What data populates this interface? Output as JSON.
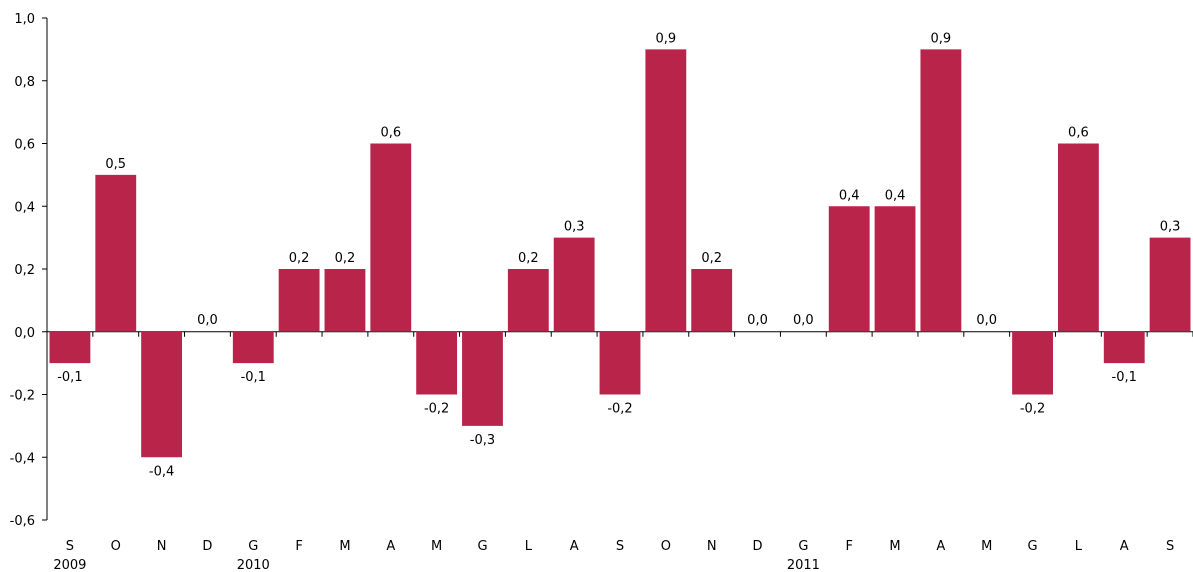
{
  "chart_data": {
    "type": "bar",
    "categories": [
      "S",
      "O",
      "N",
      "D",
      "G",
      "F",
      "M",
      "A",
      "M",
      "G",
      "L",
      "A",
      "S",
      "O",
      "N",
      "D",
      "G",
      "F",
      "M",
      "A",
      "M",
      "G",
      "L",
      "A",
      "S"
    ],
    "year_labels": [
      {
        "index": 0,
        "text": "2009"
      },
      {
        "index": 4,
        "text": "2010"
      },
      {
        "index": 16,
        "text": "2011"
      }
    ],
    "values": [
      -0.1,
      0.5,
      -0.4,
      0.0,
      -0.1,
      0.2,
      0.2,
      0.6,
      -0.2,
      -0.3,
      0.2,
      0.3,
      -0.2,
      0.9,
      0.2,
      0.0,
      0.0,
      0.4,
      0.4,
      0.9,
      0.0,
      -0.2,
      0.6,
      -0.1,
      0.3
    ],
    "data_labels": [
      "-0,1",
      "0,5",
      "-0,4",
      "0,0",
      "-0,1",
      "0,2",
      "0,2",
      "0,6",
      "-0,2",
      "-0,3",
      "0,2",
      "0,3",
      "-0,2",
      "0,9",
      "0,2",
      "0,0",
      "0,0",
      "0,4",
      "0,4",
      "0,9",
      "0,0",
      "-0,2",
      "0,6",
      "-0,1",
      "0,3"
    ],
    "ylim": [
      -0.6,
      1.0
    ],
    "yticks": [
      1.0,
      0.8,
      0.6,
      0.4,
      0.2,
      0.0,
      -0.2,
      -0.4,
      -0.6
    ],
    "ytick_labels": [
      "1,0",
      "0,8",
      "0,6",
      "0,4",
      "0,2",
      "0,0",
      "-0,2",
      "-0,4",
      "-0,6"
    ],
    "bar_color": "#B8244A",
    "grid": false,
    "legend": "none",
    "title": "",
    "xlabel": "",
    "ylabel": ""
  }
}
